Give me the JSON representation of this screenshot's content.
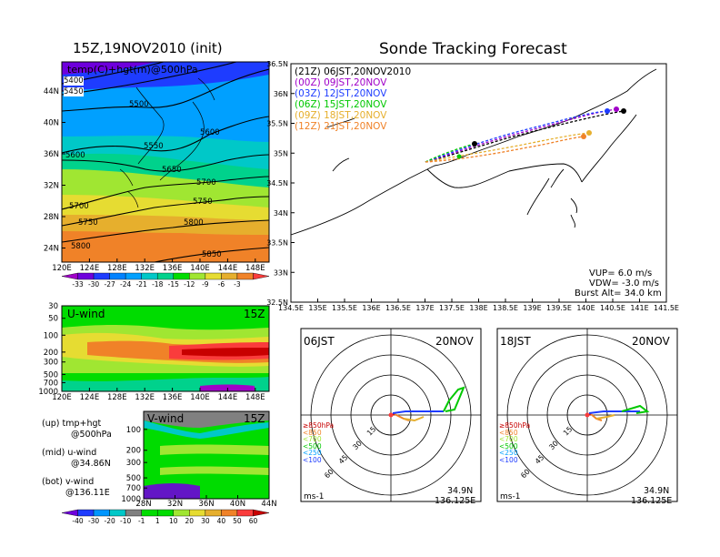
{
  "titles": {
    "main": "Sonde Tracking Forecast",
    "left_top": "15Z,19NOV2010 (init)"
  },
  "colors": {
    "c1": "#a000c8",
    "c2": "#6e00dc",
    "c3": "#1e3cff",
    "c4": "#0082ff",
    "c5": "#00a0ff",
    "c6": "#00c8c8",
    "c7": "#00d28c",
    "c8": "#00dc00",
    "c9": "#a0e632",
    "c10": "#e6dc32",
    "c11": "#e6af2d",
    "c12": "#f08228",
    "c13": "#fa3c3c",
    "v_neg3": "#1e3cff",
    "v_neg2": "#0096ff",
    "v_neg1": "#00c8c8",
    "v_0": "#808080",
    "v_1": "#00dc00",
    "v_2": "#a0e632",
    "v_3": "#e6dc32",
    "v_4": "#e6af2d",
    "v_5": "#f08228",
    "v_6": "#fa3c3c",
    "v_7": "#c80000",
    "t21": "#000000",
    "t00": "#a000c8",
    "t03": "#1e3cff",
    "t06": "#00c800",
    "t09": "#e6af2d",
    "t12": "#f08228"
  },
  "temp_map": {
    "panel_label": "temp(C)+hgt(m)@500hPa",
    "lon_ticks": [
      "120E",
      "124E",
      "128E",
      "132E",
      "136E",
      "140E",
      "144E",
      "148E"
    ],
    "lat_ticks": [
      "44N",
      "40N",
      "36N",
      "32N",
      "28N",
      "24N"
    ],
    "contours": [
      "5400",
      "5450",
      "5500",
      "5550",
      "5600",
      "5650",
      "5700",
      "5750",
      "5800",
      "5850"
    ],
    "colorbar_labels": [
      "-33",
      "-30",
      "-27",
      "-24",
      "-21",
      "-18",
      "-15",
      "-12",
      "-9",
      "-6",
      "-3"
    ]
  },
  "uwind": {
    "label": "U-wind",
    "time": "15Z",
    "p_ticks": [
      "30",
      "50",
      "100",
      "200",
      "300",
      "500",
      "700",
      "1000"
    ],
    "lon_ticks": [
      "120E",
      "124E",
      "128E",
      "132E",
      "136E",
      "140E",
      "144E",
      "148E"
    ]
  },
  "vwind": {
    "label": "V-wind",
    "time": "15Z",
    "p_ticks": [
      "100",
      "200",
      "300",
      "500",
      "700",
      "1000"
    ],
    "lat_ticks": [
      "28N",
      "32N",
      "36N",
      "40N",
      "44N"
    ],
    "colorbar_labels": [
      "-40",
      "-30",
      "-20",
      "-10",
      "-1",
      "1",
      "10",
      "20",
      "30",
      "40",
      "50",
      "60"
    ]
  },
  "notes": {
    "up1": "(up)  tmp+hgt",
    "up2": "@500hPa",
    "mid1": "(mid)  u-wind",
    "mid2": "@34.86N",
    "bot1": "(bot)  v-wind",
    "bot2": "@136.11E"
  },
  "track_map": {
    "lon_ticks": [
      "134.5E",
      "135E",
      "135.5E",
      "136E",
      "136.5E",
      "137E",
      "137.5E",
      "138E",
      "138.5E",
      "139E",
      "139.5E",
      "140E",
      "140.5E",
      "141E",
      "141.5E"
    ],
    "lat_ticks": [
      "36.5N",
      "36N",
      "35.5N",
      "35N",
      "34.5N",
      "34N",
      "33.5N",
      "33N",
      "32.5N"
    ],
    "legend": [
      "(21Z)  06JST,20NOV2010",
      "(00Z)  09JST,20NOV",
      "(03Z)  12JST,20NOV",
      "(06Z)  15JST,20NOV",
      "(09Z)  18JST,20NOV",
      "(12Z)  21JST,20NOV"
    ],
    "vup": "VUP=  6.0  m/s",
    "vdw": "VDW=  -3.0  m/s",
    "burst": "Burst  Alt=  34.0  km"
  },
  "hodograph_left": {
    "time": "06JST",
    "date": "20NOV",
    "rings": [
      "15",
      "30",
      "45",
      "60"
    ],
    "levels": [
      "≥850hPa",
      "<850",
      "<700",
      "<500",
      "<250",
      "<100"
    ],
    "unit": "ms-1",
    "lat": "34.9N",
    "lon": "136.125E"
  },
  "hodograph_right": {
    "time": "18JST",
    "date": "20NOV",
    "rings": [
      "15",
      "30",
      "45",
      "60"
    ],
    "levels": [
      "≥850hPa",
      "<850",
      "<700",
      "<500",
      "<250",
      "<100"
    ],
    "unit": "ms-1",
    "lat": "34.9N",
    "lon": "136.125E"
  },
  "chart_data": [
    {
      "type": "heatmap",
      "title": "15Z,19NOV2010 (init)",
      "variable": "temp(C)+hgt(m)@500hPa",
      "xlim": [
        120,
        150
      ],
      "ylim": [
        22,
        48
      ],
      "temperature_bands": [
        {
          "lat": 45,
          "temp": -33
        },
        {
          "lat": 41,
          "temp": -30
        },
        {
          "lat": 39,
          "temp": -24
        },
        {
          "lat": 36,
          "temp": -18
        },
        {
          "lat": 33,
          "temp": -15
        },
        {
          "lat": 30,
          "temp": -12
        },
        {
          "lat": 27,
          "temp": -9
        },
        {
          "lat": 24,
          "temp": -6
        }
      ],
      "height_contours": [
        5400,
        5450,
        5500,
        5550,
        5600,
        5650,
        5700,
        5750,
        5800,
        5850
      ]
    },
    {
      "type": "heatmap",
      "title": "U-wind",
      "xlim": [
        120,
        150
      ],
      "ylim_hPa": [
        1000,
        30
      ],
      "jet_core_region": {
        "lon": [
          136,
          149
        ],
        "p_hPa": [
          200,
          300
        ],
        "speed_range": [
          50,
          60
        ]
      }
    },
    {
      "type": "heatmap",
      "title": "V-wind",
      "xlim": [
        28,
        44
      ],
      "ylim_hPa": [
        1000,
        100
      ]
    },
    {
      "type": "line",
      "title": "Sonde Tracking Forecast",
      "xlim": [
        134.5,
        141.5
      ],
      "ylim": [
        32.5,
        36.5
      ],
      "launch": {
        "lon": 136.1,
        "lat": 34.85
      },
      "series": [
        {
          "name": "(21Z)  06JST,20NOV2010",
          "end_lon": 140.6,
          "end_lat": 35.7
        },
        {
          "name": "(00Z)  09JST,20NOV",
          "end_lon": 140.4,
          "end_lat": 35.73
        },
        {
          "name": "(03Z)  12JST,20NOV",
          "end_lon": 140.2,
          "end_lat": 35.71
        },
        {
          "name": "(06Z)  15JST,20NOV",
          "end_lon": 137.5,
          "end_lat": 35.15
        },
        {
          "name": "(09Z)  18JST,20NOV",
          "end_lon": 139.8,
          "end_lat": 35.2
        },
        {
          "name": "(12Z)  21JST,20NOV",
          "end_lon": 139.7,
          "end_lat": 35.1
        }
      ],
      "annotations": {
        "VUP_m_s": 6.0,
        "VDW_m_s": -3.0,
        "burst_alt_km": 34.0
      }
    },
    {
      "type": "line",
      "title": "06JST 20NOV hodograph",
      "rings_m_s": [
        15,
        30,
        45,
        60
      ]
    },
    {
      "type": "line",
      "title": "18JST 20NOV hodograph",
      "rings_m_s": [
        15,
        30,
        45,
        60
      ]
    }
  ]
}
